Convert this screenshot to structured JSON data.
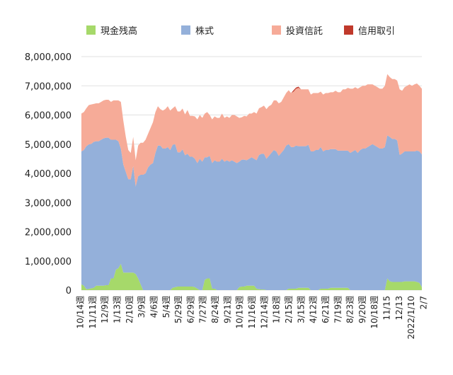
{
  "chart_data": {
    "type": "area",
    "stacked": true,
    "ylim": [
      0,
      8000000
    ],
    "y_ticks": [
      "0",
      "1,000,000",
      "2,000,000",
      "3,000,000",
      "4,000,000",
      "5,000,000",
      "6,000,000",
      "7,000,000",
      "8,000,000"
    ],
    "y_tick_values": [
      0,
      1000000,
      2000000,
      3000000,
      4000000,
      5000000,
      6000000,
      7000000,
      8000000
    ],
    "x_tick_labels": [
      "10/14週",
      "11/11週",
      "12/9週",
      "1/13週",
      "2/10週",
      "3/9週",
      "4/6週",
      "5/4週",
      "5/29週",
      "6/29週",
      "7/27週",
      "8/24週",
      "9/21週",
      "10/19週",
      "11/16週",
      "12/14週",
      "1/18週",
      "2/15週",
      "3/15週",
      "4/12週",
      "6/21週",
      "7/19週",
      "8/23週",
      "9/20週",
      "10/18週",
      "11/15",
      "12/13",
      "2022/1/10",
      "2/7"
    ],
    "legend_position": "top",
    "grid": true,
    "colors": {
      "cash": "#a6d96a",
      "stocks": "#94b0da",
      "funds": "#f6ab98",
      "margin": "#c0392b"
    },
    "series": [
      {
        "name": "現金残高",
        "values": [
          200000,
          150000,
          30000,
          40000,
          60000,
          80000,
          150000,
          150000,
          150000,
          150000,
          170000,
          170000,
          400000,
          400000,
          700000,
          750000,
          900000,
          600000,
          600000,
          600000,
          600000,
          600000,
          550000,
          400000,
          200000,
          0,
          0,
          0,
          0,
          0,
          0,
          0,
          0,
          0,
          0,
          0,
          0,
          80000,
          100000,
          120000,
          120000,
          120000,
          120000,
          120000,
          120000,
          120000,
          100000,
          50000,
          0,
          0,
          350000,
          400000,
          400000,
          50000,
          50000,
          0,
          0,
          0,
          0,
          0,
          0,
          0,
          0,
          0,
          100000,
          120000,
          120000,
          150000,
          150000,
          150000,
          150000,
          50000,
          30000,
          20000,
          20000,
          0,
          0,
          0,
          0,
          0,
          0,
          0,
          0,
          0,
          50000,
          50000,
          50000,
          50000,
          80000,
          80000,
          80000,
          80000,
          80000,
          0,
          0,
          0,
          0,
          50000,
          50000,
          50000,
          50000,
          80000,
          80000,
          80000,
          80000,
          80000,
          80000,
          80000,
          80000,
          0,
          0,
          0,
          0,
          0,
          0,
          0,
          0,
          0,
          0,
          0,
          0,
          0,
          0,
          0,
          400000,
          300000,
          280000,
          280000,
          280000,
          280000,
          280000,
          300000,
          300000,
          300000,
          300000,
          300000,
          280000,
          250000,
          100000
        ]
      },
      {
        "name": "株式",
        "values": [
          4550000,
          4650000,
          4900000,
          4950000,
          4950000,
          5000000,
          4950000,
          4950000,
          5000000,
          5050000,
          5050000,
          5050000,
          4750000,
          4750000,
          4450000,
          4350000,
          3950000,
          3700000,
          3450000,
          3200000,
          3200000,
          3650000,
          3000000,
          3500000,
          3750000,
          3950000,
          4000000,
          4200000,
          4300000,
          4350000,
          4700000,
          4950000,
          4950000,
          4850000,
          4850000,
          4900000,
          4800000,
          4900000,
          4900000,
          4600000,
          4600000,
          4700000,
          4500000,
          4550000,
          4450000,
          4450000,
          4400000,
          4300000,
          4500000,
          4400000,
          4200000,
          4150000,
          4200000,
          4300000,
          4400000,
          4400000,
          4400000,
          4500000,
          4400000,
          4450000,
          4400000,
          4450000,
          4400000,
          4350000,
          4300000,
          4350000,
          4350000,
          4300000,
          4350000,
          4400000,
          4350000,
          4400000,
          4600000,
          4650000,
          4650000,
          4500000,
          4600000,
          4700000,
          4800000,
          4750000,
          4600000,
          4700000,
          4800000,
          4950000,
          4950000,
          4850000,
          4850000,
          4900000,
          4850000,
          4850000,
          4850000,
          4850000,
          4900000,
          4750000,
          4750000,
          4800000,
          4800000,
          4850000,
          4700000,
          4750000,
          4750000,
          4750000,
          4750000,
          4750000,
          4700000,
          4700000,
          4700000,
          4700000,
          4700000,
          4700000,
          4750000,
          4800000,
          4700000,
          4800000,
          4850000,
          4850000,
          4900000,
          4950000,
          5000000,
          4950000,
          4900000,
          4850000,
          4850000,
          4900000,
          4900000,
          4950000,
          4900000,
          4900000,
          4850000,
          4350000,
          4400000,
          4450000,
          4450000,
          4450000,
          4450000,
          4450000,
          4500000,
          4500000,
          4550000,
          4550000,
          4550000,
          4500000,
          4550000,
          4750000,
          5000000
        ]
      },
      {
        "name": "投資信託",
        "values": [
          1300000,
          1300000,
          1300000,
          1350000,
          1350000,
          1300000,
          1300000,
          1300000,
          1300000,
          1300000,
          1300000,
          1300000,
          1300000,
          1350000,
          1350000,
          1400000,
          1600000,
          1500000,
          1200000,
          1000000,
          900000,
          1000000,
          900000,
          1050000,
          1100000,
          1100000,
          1150000,
          1150000,
          1250000,
          1400000,
          1400000,
          1350000,
          1250000,
          1300000,
          1350000,
          1400000,
          1350000,
          1250000,
          1300000,
          1400000,
          1400000,
          1400000,
          1400000,
          1500000,
          1400000,
          1400000,
          1450000,
          1500000,
          1500000,
          1500000,
          1500000,
          1550000,
          1400000,
          1500000,
          1500000,
          1500000,
          1500000,
          1550000,
          1500000,
          1500000,
          1500000,
          1550000,
          1600000,
          1600000,
          1500000,
          1450000,
          1500000,
          1500000,
          1550000,
          1500000,
          1600000,
          1600000,
          1600000,
          1600000,
          1650000,
          1700000,
          1700000,
          1650000,
          1700000,
          1750000,
          1800000,
          1750000,
          1800000,
          1800000,
          1850000,
          1850000,
          1900000,
          1950000,
          2000000,
          1950000,
          1950000,
          1950000,
          1900000,
          1950000,
          2000000,
          1950000,
          1950000,
          1900000,
          1950000,
          1950000,
          1950000,
          1950000,
          1950000,
          2000000,
          2000000,
          2000000,
          2100000,
          2100000,
          2150000,
          2200000,
          2150000,
          2150000,
          2200000,
          2150000,
          2150000,
          2150000,
          2150000,
          2100000,
          2050000,
          2050000,
          2050000,
          2050000,
          2050000,
          2100000,
          2100000,
          2050000,
          2050000,
          2050000,
          2050000,
          2250000,
          2150000,
          2200000,
          2250000,
          2300000,
          2250000,
          2300000,
          2300000,
          2250000,
          2250000,
          2150000,
          2000000,
          2000000,
          2150000,
          2150000,
          2050000
        ]
      },
      {
        "name": "信用取引",
        "values": [
          0,
          0,
          0,
          0,
          0,
          0,
          0,
          0,
          0,
          0,
          0,
          0,
          0,
          0,
          0,
          0,
          0,
          0,
          0,
          0,
          0,
          0,
          0,
          0,
          0,
          0,
          0,
          0,
          0,
          0,
          0,
          0,
          0,
          0,
          0,
          0,
          0,
          0,
          0,
          0,
          0,
          0,
          0,
          0,
          0,
          0,
          0,
          0,
          0,
          0,
          0,
          0,
          0,
          0,
          0,
          0,
          0,
          0,
          0,
          0,
          0,
          0,
          0,
          0,
          0,
          0,
          0,
          0,
          0,
          0,
          0,
          0,
          0,
          0,
          0,
          0,
          0,
          0,
          0,
          0,
          0,
          0,
          0,
          0,
          0,
          0,
          50000,
          40000,
          40000,
          0,
          0,
          0,
          0,
          0,
          0,
          0,
          0,
          0,
          0,
          0,
          0,
          0,
          0,
          0,
          0,
          0,
          0,
          0,
          0,
          0,
          0,
          0,
          0,
          0,
          0,
          0,
          0,
          0,
          0,
          0,
          0,
          0,
          0,
          0,
          0,
          0,
          0,
          0,
          0,
          0,
          0,
          0,
          0,
          0,
          0,
          0,
          0,
          0,
          0,
          0,
          0,
          0,
          0,
          0,
          0,
          0
        ]
      }
    ]
  }
}
